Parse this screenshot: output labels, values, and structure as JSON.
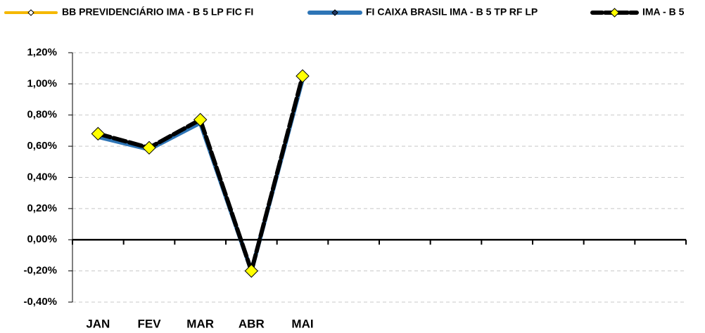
{
  "chart_data": {
    "type": "line",
    "categories": [
      "JAN",
      "FEV",
      "MAR",
      "ABR",
      "MAI",
      null,
      null,
      null,
      null,
      null,
      null,
      null
    ],
    "series": [
      {
        "name": "BB PREVIDENCIÁRIO IMA - B 5 LP FIC FI",
        "color": "#f5b800",
        "marker_color": "#ffffff",
        "values": [
          0.67,
          0.58,
          0.76,
          -0.2,
          1.04,
          null,
          null,
          null,
          null,
          null,
          null,
          null
        ]
      },
      {
        "name": "FI CAIXA BRASIL IMA - B 5 TP RF LP",
        "color": "#2e75b6",
        "marker_color": "#1f3864",
        "values": [
          0.66,
          0.58,
          0.75,
          -0.2,
          1.03,
          null,
          null,
          null,
          null,
          null,
          null,
          null
        ]
      },
      {
        "name": "IMA - B 5",
        "color": "#000000",
        "marker_color": "#ffff00",
        "values": [
          0.68,
          0.59,
          0.77,
          -0.2,
          1.05,
          null,
          null,
          null,
          null,
          null,
          null,
          null
        ]
      }
    ],
    "ylim": [
      -0.4,
      1.2
    ],
    "yticks": [
      {
        "value": -0.4,
        "label": "-0,40%"
      },
      {
        "value": -0.2,
        "label": "-0,20%"
      },
      {
        "value": 0,
        "label": "0,00%"
      },
      {
        "value": 0.2,
        "label": "0,20%"
      },
      {
        "value": 0.4,
        "label": "0,40%"
      },
      {
        "value": 0.6,
        "label": "0,60%"
      },
      {
        "value": 0.8,
        "label": "0,80%"
      },
      {
        "value": 1.0,
        "label": "1,00%"
      },
      {
        "value": 1.2,
        "label": "1,20%"
      }
    ],
    "grid": true,
    "legend": "top"
  }
}
